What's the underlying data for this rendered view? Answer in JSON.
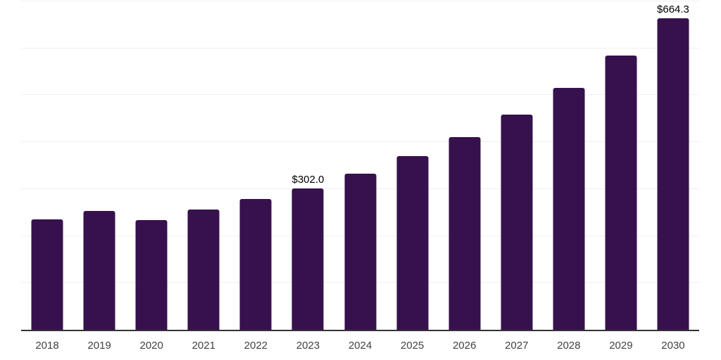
{
  "chart_data": {
    "type": "bar",
    "title": "",
    "xlabel": "",
    "ylabel": "",
    "categories": [
      "2018",
      "2019",
      "2020",
      "2021",
      "2022",
      "2023",
      "2024",
      "2025",
      "2026",
      "2027",
      "2028",
      "2029",
      "2030"
    ],
    "values": [
      235.8,
      253.6,
      234.4,
      256.2,
      278.2,
      302.0,
      333.5,
      369.9,
      411.3,
      458.7,
      515.6,
      584.8,
      664.3
    ],
    "annotations": [
      {
        "category": "2023",
        "text": "$302.0"
      },
      {
        "category": "2030",
        "text": "$664.3"
      }
    ],
    "ylim": [
      0,
      700
    ],
    "gridline_step": 100,
    "grid": "horizontal",
    "legend_position": "none",
    "colors": {
      "bar": "#37114d",
      "axis_line": "#333333",
      "gridline": "#f0f0f0",
      "tick_label": "#424242",
      "value_label": "#000000",
      "background": "#ffffff"
    }
  }
}
